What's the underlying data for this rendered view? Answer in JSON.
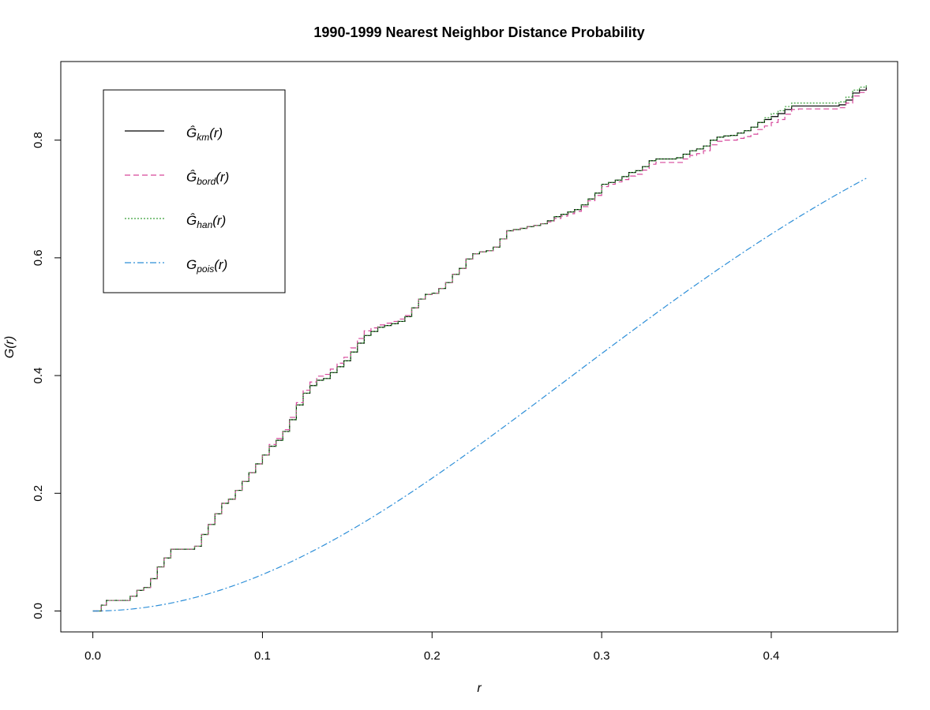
{
  "chart_data": {
    "type": "line",
    "title": "1990-1999 Nearest Neighbor Distance Probability",
    "xlabel": "r",
    "ylabel": "G(r)",
    "xlim": [
      -0.0189,
      0.4745
    ],
    "ylim": [
      -0.0355,
      0.9335
    ],
    "xticks": [
      0.0,
      0.1,
      0.2,
      0.3,
      0.4
    ],
    "xtick_labels": [
      "0.0",
      "0.1",
      "0.2",
      "0.3",
      "0.4"
    ],
    "yticks": [
      0.0,
      0.2,
      0.4,
      0.6,
      0.8
    ],
    "ytick_labels": [
      "0.0",
      "0.2",
      "0.4",
      "0.6",
      "0.8"
    ],
    "grid": false,
    "legend_position": "top-left",
    "series": [
      {
        "name": "Ĝkm(r)",
        "legend_main": "Ĝ",
        "legend_sub": "km",
        "legend_tail": "(r)",
        "color": "#000000",
        "dash": "",
        "step": true,
        "x": [
          0.0,
          0.005,
          0.008,
          0.018,
          0.022,
          0.026,
          0.03,
          0.034,
          0.038,
          0.042,
          0.046,
          0.05,
          0.055,
          0.06,
          0.064,
          0.068,
          0.072,
          0.076,
          0.08,
          0.084,
          0.088,
          0.092,
          0.096,
          0.1,
          0.104,
          0.108,
          0.112,
          0.116,
          0.12,
          0.124,
          0.128,
          0.132,
          0.136,
          0.14,
          0.144,
          0.148,
          0.152,
          0.156,
          0.16,
          0.164,
          0.168,
          0.172,
          0.176,
          0.18,
          0.184,
          0.188,
          0.192,
          0.196,
          0.2,
          0.204,
          0.208,
          0.212,
          0.216,
          0.22,
          0.224,
          0.228,
          0.232,
          0.236,
          0.24,
          0.244,
          0.248,
          0.252,
          0.256,
          0.26,
          0.264,
          0.268,
          0.272,
          0.276,
          0.28,
          0.284,
          0.288,
          0.292,
          0.296,
          0.3,
          0.304,
          0.308,
          0.312,
          0.316,
          0.32,
          0.324,
          0.328,
          0.332,
          0.336,
          0.34,
          0.344,
          0.348,
          0.352,
          0.356,
          0.36,
          0.364,
          0.368,
          0.372,
          0.376,
          0.38,
          0.384,
          0.388,
          0.392,
          0.396,
          0.4,
          0.404,
          0.408,
          0.412,
          0.416,
          0.42,
          0.424,
          0.428,
          0.432,
          0.436,
          0.44,
          0.444,
          0.448,
          0.452,
          0.456
        ],
        "y": [
          0.0,
          0.01,
          0.018,
          0.018,
          0.025,
          0.035,
          0.04,
          0.055,
          0.075,
          0.09,
          0.105,
          0.105,
          0.105,
          0.11,
          0.13,
          0.147,
          0.165,
          0.183,
          0.19,
          0.205,
          0.22,
          0.235,
          0.25,
          0.265,
          0.28,
          0.29,
          0.305,
          0.325,
          0.35,
          0.37,
          0.383,
          0.392,
          0.395,
          0.405,
          0.415,
          0.425,
          0.44,
          0.455,
          0.468,
          0.475,
          0.482,
          0.485,
          0.488,
          0.492,
          0.5,
          0.515,
          0.53,
          0.538,
          0.54,
          0.548,
          0.558,
          0.572,
          0.582,
          0.598,
          0.607,
          0.61,
          0.612,
          0.618,
          0.632,
          0.646,
          0.648,
          0.65,
          0.653,
          0.655,
          0.658,
          0.663,
          0.67,
          0.674,
          0.678,
          0.682,
          0.69,
          0.7,
          0.71,
          0.725,
          0.728,
          0.732,
          0.738,
          0.745,
          0.748,
          0.755,
          0.765,
          0.768,
          0.768,
          0.768,
          0.77,
          0.776,
          0.782,
          0.785,
          0.79,
          0.8,
          0.805,
          0.807,
          0.808,
          0.812,
          0.816,
          0.822,
          0.83,
          0.835,
          0.84,
          0.845,
          0.852,
          0.858,
          0.858,
          0.858,
          0.858,
          0.858,
          0.858,
          0.858,
          0.86,
          0.868,
          0.88,
          0.885,
          0.89
        ]
      },
      {
        "name": "Ĝbord(r)",
        "legend_main": "Ĝ",
        "legend_sub": "bord",
        "legend_tail": "(r)",
        "color": "#d6479b",
        "dash": "7,4",
        "step": true,
        "offset_from": 0,
        "y_offset": [
          0.0,
          0.0,
          0.0,
          0.0,
          0.0,
          0.0,
          0.0,
          0.0,
          0.0,
          0.0,
          0.0,
          0.0,
          0.0,
          0.0,
          0.0,
          0.0,
          0.0,
          0.0,
          0.0,
          0.0,
          0.0,
          0.0,
          0.0,
          0.0,
          0.003,
          0.003,
          0.003,
          0.004,
          0.004,
          0.005,
          0.006,
          0.007,
          0.007,
          0.006,
          0.006,
          0.006,
          0.007,
          0.008,
          0.008,
          0.006,
          0.004,
          0.004,
          0.004,
          0.004,
          0.002,
          0.0,
          0.0,
          0.0,
          0.0,
          0.0,
          0.0,
          0.0,
          0.0,
          0.0,
          0.0,
          0.0,
          0.0,
          0.0,
          0.0,
          0.0,
          0.0,
          0.0,
          0.0,
          0.0,
          0.0,
          -0.002,
          -0.003,
          -0.003,
          -0.003,
          -0.003,
          -0.003,
          -0.003,
          -0.004,
          -0.004,
          -0.003,
          -0.003,
          -0.005,
          -0.006,
          -0.006,
          -0.006,
          -0.006,
          -0.006,
          -0.006,
          -0.006,
          -0.008,
          -0.008,
          -0.008,
          -0.008,
          -0.008,
          -0.008,
          -0.007,
          -0.007,
          -0.008,
          -0.009,
          -0.01,
          -0.012,
          -0.012,
          -0.011,
          -0.01,
          -0.01,
          -0.008,
          -0.006,
          -0.005,
          -0.005,
          -0.005,
          -0.005,
          -0.005,
          -0.005,
          -0.005,
          -0.005,
          -0.005,
          -0.004,
          -0.004
        ]
      },
      {
        "name": "Ĝhan(r)",
        "legend_main": "Ĝ",
        "legend_sub": "han",
        "legend_tail": "(r)",
        "color": "#3aa13a",
        "dash": "2,2",
        "step": true,
        "offset_from": 0,
        "y_offset": [
          0.0,
          0.0,
          0.0,
          0.0,
          0.0,
          0.0,
          0.0,
          0.0,
          0.0,
          0.0,
          0.0,
          0.0,
          0.0,
          0.0,
          0.0,
          0.0,
          0.0,
          0.0,
          0.0,
          0.0,
          0.0,
          0.0,
          0.0,
          0.0,
          0.0,
          0.0,
          0.0,
          0.0,
          0.0,
          0.0,
          0.0,
          0.0,
          0.0,
          0.0,
          0.0,
          0.0,
          0.0,
          0.0,
          0.0,
          0.0,
          0.0,
          0.0,
          0.0,
          0.0,
          0.0,
          0.0,
          0.0,
          0.0,
          0.0,
          0.0,
          0.0,
          0.0,
          0.0,
          0.0,
          0.0,
          0.0,
          0.0,
          0.0,
          0.0,
          0.0,
          0.0,
          0.0,
          0.0,
          0.0,
          0.0,
          0.0,
          0.0,
          0.0,
          0.0,
          0.0,
          0.0,
          0.0,
          0.0,
          0.0,
          0.0,
          0.0,
          0.0,
          0.0,
          0.0,
          0.0,
          0.0,
          0.0,
          0.0,
          0.0,
          0.0,
          0.0,
          0.0,
          0.0,
          0.0,
          0.0,
          0.0,
          0.0,
          0.0,
          0.0,
          0.0,
          0.0,
          0.0,
          0.003,
          0.005,
          0.005,
          0.005,
          0.005,
          0.005,
          0.005,
          0.005,
          0.005,
          0.005,
          0.005,
          0.005,
          0.005,
          0.005,
          0.005,
          0.005
        ]
      },
      {
        "name": "Gpois(r)",
        "legend_main": "G",
        "legend_sub": "pois",
        "legend_tail": "(r)",
        "color": "#2e8fd8",
        "dash": "8,3,2,3",
        "step": false,
        "function": "poisson",
        "lambda_pi": 6.39
      }
    ]
  }
}
